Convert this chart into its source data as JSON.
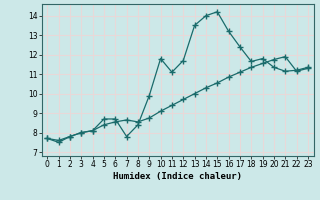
{
  "xlabel": "Humidex (Indice chaleur)",
  "bg_color": "#cce8e8",
  "grid_color": "#e8d8d8",
  "line_color": "#1a6b6b",
  "xlim": [
    -0.5,
    23.5
  ],
  "ylim": [
    6.8,
    14.6
  ],
  "yticks": [
    7,
    8,
    9,
    10,
    11,
    12,
    13,
    14
  ],
  "xticks": [
    0,
    1,
    2,
    3,
    4,
    5,
    6,
    7,
    8,
    9,
    10,
    11,
    12,
    13,
    14,
    15,
    16,
    17,
    18,
    19,
    20,
    21,
    22,
    23
  ],
  "curve1_x": [
    0,
    1,
    2,
    3,
    4,
    5,
    6,
    7,
    8,
    9,
    10,
    11,
    12,
    13,
    14,
    15,
    16,
    17,
    18,
    19,
    20,
    21,
    22,
    23
  ],
  "curve1_y": [
    7.7,
    7.5,
    7.8,
    8.0,
    8.1,
    8.7,
    8.7,
    7.8,
    8.4,
    9.9,
    11.8,
    11.1,
    11.7,
    13.5,
    14.0,
    14.2,
    13.2,
    12.4,
    11.65,
    11.8,
    11.35,
    11.15,
    11.2,
    11.35
  ],
  "curve2_x": [
    0,
    1,
    2,
    3,
    4,
    5,
    6,
    7,
    8,
    9,
    10,
    11,
    12,
    13,
    14,
    15,
    16,
    17,
    18,
    19,
    20,
    21,
    22,
    23
  ],
  "curve2_y": [
    7.7,
    7.6,
    7.8,
    8.0,
    8.1,
    8.4,
    8.55,
    8.65,
    8.55,
    8.75,
    9.1,
    9.4,
    9.7,
    10.0,
    10.3,
    10.55,
    10.85,
    11.1,
    11.35,
    11.55,
    11.75,
    11.9,
    11.15,
    11.3
  ]
}
